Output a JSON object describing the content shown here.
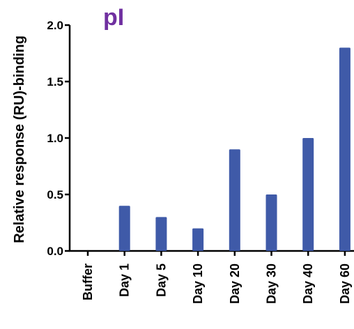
{
  "colors": {
    "bar": "#3f5aa8",
    "axis": "#000000",
    "title": "#7030a0"
  },
  "chart_data": {
    "type": "bar",
    "title": "pI",
    "xlabel": "",
    "ylabel": "Relative response (RU)-binding",
    "categories": [
      "Buffer",
      "Day 1",
      "Day 5",
      "Day 10",
      "Day 20",
      "Day 30",
      "Day 40",
      "Day 60"
    ],
    "values": [
      0.0,
      0.4,
      0.3,
      0.2,
      0.9,
      0.5,
      1.0,
      1.8
    ],
    "ylim": [
      0,
      2.0
    ],
    "yticks": [
      0.0,
      0.5,
      1.0,
      1.5,
      2.0
    ],
    "ytick_labels": [
      "0.0",
      "0.5",
      "1.0",
      "1.5",
      "2.0"
    ],
    "grid": false,
    "legend": "none"
  }
}
